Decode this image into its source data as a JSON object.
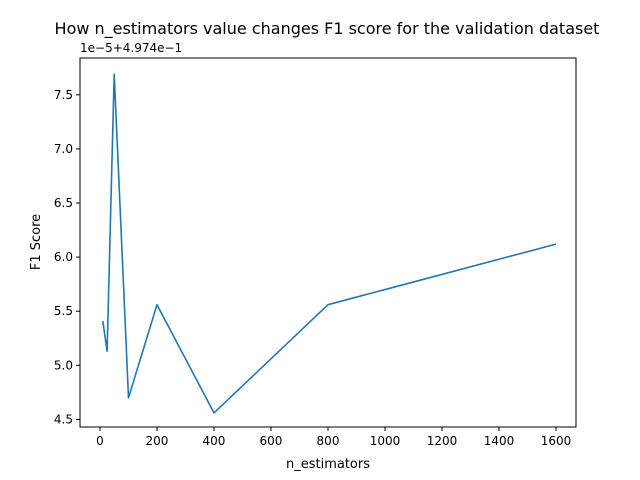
{
  "chart_data": {
    "type": "line",
    "title": "How n_estimators value changes F1 score for the validation dataset",
    "xlabel": "n_estimators",
    "ylabel": "F1 Score",
    "offset_text": "1e−5+4.974e−1",
    "xlim": [
      -70,
      1670
    ],
    "ylim": [
      4.43,
      7.84
    ],
    "x_ticks": [
      0,
      200,
      400,
      600,
      800,
      1000,
      1200,
      1400,
      1600
    ],
    "x_tick_labels": [
      "0",
      "200",
      "400",
      "600",
      "800",
      "1000",
      "1200",
      "1400",
      "1600"
    ],
    "y_ticks": [
      4.5,
      5.0,
      5.5,
      6.0,
      6.5,
      7.0,
      7.5
    ],
    "y_tick_labels": [
      "4.5",
      "5.0",
      "5.5",
      "6.0",
      "6.5",
      "7.0",
      "7.5"
    ],
    "grid": false,
    "series": [
      {
        "color": "#1f77b4",
        "x": [
          10,
          25,
          50,
          100,
          200,
          400,
          800,
          1600
        ],
        "y": [
          5.41,
          5.13,
          7.69,
          4.7,
          5.56,
          4.56,
          5.56,
          6.12
        ]
      }
    ]
  }
}
